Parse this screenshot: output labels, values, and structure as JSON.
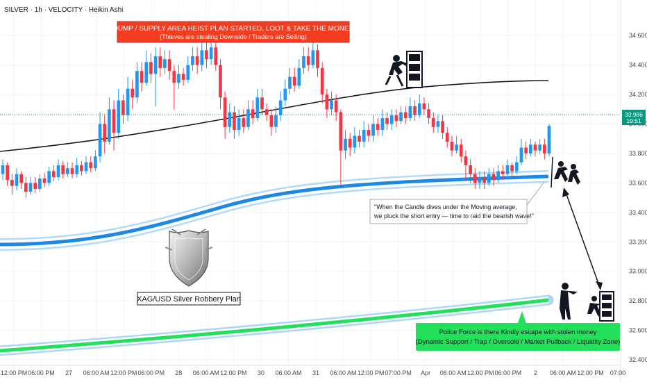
{
  "header": {
    "symbol_text": "SILVER · 1h · VELOCITY · Heikin Ashi"
  },
  "banner": {
    "line1": "DUMP / SUPPLY AREA HEIST PLAN STARTED, LOOT & TAKE THE MONEY",
    "line2": "(Thieves are stealing Downside / Traders are Selling)",
    "color": "#f23d20"
  },
  "note": {
    "line1": "\"When the Candle dives under the Moving average,",
    "line2": "we pluck the short entry — time to raid the bearish wave!\""
  },
  "logo_caption": "XAG/USD Silver Robbery Plan",
  "support_box": {
    "line1": "Police Force is there Kindly escape with stolen money",
    "line2": "(Dynamic Support / Trap / Oversold / Market Pullback / Liquidity Zone)",
    "color": "#22e05a"
  },
  "price_tag": {
    "price": "33.986",
    "countdown": "19:51",
    "color": "#089981"
  },
  "colors": {
    "up": "#2196f3",
    "down": "#f23645",
    "ma": "#131722",
    "band_blue": "#1e88e5",
    "band_light": "#90caf9",
    "band_green": "#22e05a"
  },
  "chart_data": {
    "type": "candlestick",
    "title": "SILVER · 1h · VELOCITY · Heikin Ashi",
    "ylim": [
      32.4,
      34.7
    ],
    "y_ticks": [
      "34.600",
      "34.400",
      "34.200",
      "34.000",
      "33.800",
      "33.600",
      "33.400",
      "33.200",
      "33.000",
      "32.800",
      "32.600",
      "32.400"
    ],
    "x_ticks": [
      "12:00 PM",
      "06:00 PM",
      "27",
      "06:00 AM",
      "12:00 PM",
      "06:00 PM",
      "28",
      "06:00 AM",
      "12:00 PM",
      "30",
      "06:00 AM",
      "31",
      "06:00 AM",
      "12:00 PM",
      "07:00 PM",
      "Apr",
      "06:00 AM",
      "12:00 PM",
      "06:00 PM",
      "2",
      "06:00 AM",
      "12:00 PM",
      "07:00"
    ],
    "last_price": 33.986,
    "candles": [
      {
        "o": 33.66,
        "c": 33.72,
        "h": 33.76,
        "l": 33.62
      },
      {
        "o": 33.72,
        "c": 33.62,
        "h": 33.74,
        "l": 33.58
      },
      {
        "o": 33.62,
        "c": 33.58,
        "h": 33.66,
        "l": 33.52
      },
      {
        "o": 33.58,
        "c": 33.66,
        "h": 33.7,
        "l": 33.55
      },
      {
        "o": 33.66,
        "c": 33.6,
        "h": 33.68,
        "l": 33.56
      },
      {
        "o": 33.6,
        "c": 33.54,
        "h": 33.64,
        "l": 33.5
      },
      {
        "o": 33.54,
        "c": 33.6,
        "h": 33.64,
        "l": 33.52
      },
      {
        "o": 33.6,
        "c": 33.56,
        "h": 33.64,
        "l": 33.53
      },
      {
        "o": 33.56,
        "c": 33.63,
        "h": 33.66,
        "l": 33.54
      },
      {
        "o": 33.63,
        "c": 33.6,
        "h": 33.67,
        "l": 33.57
      },
      {
        "o": 33.6,
        "c": 33.68,
        "h": 33.71,
        "l": 33.58
      },
      {
        "o": 33.68,
        "c": 33.64,
        "h": 33.72,
        "l": 33.61
      },
      {
        "o": 33.64,
        "c": 33.72,
        "h": 33.76,
        "l": 33.62
      },
      {
        "o": 33.72,
        "c": 33.66,
        "h": 33.75,
        "l": 33.63
      },
      {
        "o": 33.66,
        "c": 33.7,
        "h": 33.74,
        "l": 33.64
      },
      {
        "o": 33.7,
        "c": 33.66,
        "h": 33.74,
        "l": 33.63
      },
      {
        "o": 33.66,
        "c": 33.72,
        "h": 33.77,
        "l": 33.64
      },
      {
        "o": 33.72,
        "c": 33.68,
        "h": 33.75,
        "l": 33.65
      },
      {
        "o": 33.68,
        "c": 33.74,
        "h": 33.78,
        "l": 33.66
      },
      {
        "o": 33.74,
        "c": 33.7,
        "h": 33.78,
        "l": 33.67
      },
      {
        "o": 33.7,
        "c": 33.78,
        "h": 33.82,
        "l": 33.68
      },
      {
        "o": 33.78,
        "c": 34.0,
        "h": 34.08,
        "l": 33.74
      },
      {
        "o": 34.0,
        "c": 33.88,
        "h": 34.06,
        "l": 33.8
      },
      {
        "o": 33.88,
        "c": 34.1,
        "h": 34.18,
        "l": 33.86
      },
      {
        "o": 34.1,
        "c": 33.94,
        "h": 34.16,
        "l": 33.82
      },
      {
        "o": 33.94,
        "c": 34.16,
        "h": 34.24,
        "l": 33.9
      },
      {
        "o": 34.16,
        "c": 34.06,
        "h": 34.2,
        "l": 34.0
      },
      {
        "o": 34.06,
        "c": 34.24,
        "h": 34.32,
        "l": 34.02
      },
      {
        "o": 34.24,
        "c": 34.18,
        "h": 34.3,
        "l": 34.1
      },
      {
        "o": 34.18,
        "c": 34.36,
        "h": 34.42,
        "l": 34.14
      },
      {
        "o": 34.36,
        "c": 34.28,
        "h": 34.42,
        "l": 34.22
      },
      {
        "o": 34.28,
        "c": 34.42,
        "h": 34.5,
        "l": 34.26
      },
      {
        "o": 34.42,
        "c": 34.34,
        "h": 34.48,
        "l": 34.28
      },
      {
        "o": 34.34,
        "c": 34.46,
        "h": 34.52,
        "l": 34.12
      },
      {
        "o": 34.46,
        "c": 34.38,
        "h": 34.52,
        "l": 34.32
      },
      {
        "o": 34.38,
        "c": 34.44,
        "h": 34.5,
        "l": 34.34
      },
      {
        "o": 34.44,
        "c": 34.36,
        "h": 34.5,
        "l": 34.3
      },
      {
        "o": 34.36,
        "c": 34.28,
        "h": 34.4,
        "l": 34.1
      },
      {
        "o": 34.28,
        "c": 34.34,
        "h": 34.4,
        "l": 34.24
      },
      {
        "o": 34.34,
        "c": 34.3,
        "h": 34.38,
        "l": 34.26
      },
      {
        "o": 34.3,
        "c": 34.4,
        "h": 34.46,
        "l": 34.28
      },
      {
        "o": 34.4,
        "c": 34.46,
        "h": 34.52,
        "l": 34.36
      },
      {
        "o": 34.46,
        "c": 34.4,
        "h": 34.52,
        "l": 34.34
      },
      {
        "o": 34.4,
        "c": 34.5,
        "h": 34.56,
        "l": 34.36
      },
      {
        "o": 34.5,
        "c": 34.44,
        "h": 34.56,
        "l": 34.38
      },
      {
        "o": 34.44,
        "c": 34.52,
        "h": 34.58,
        "l": 34.4
      },
      {
        "o": 34.52,
        "c": 34.4,
        "h": 34.56,
        "l": 34.36
      },
      {
        "o": 34.4,
        "c": 34.18,
        "h": 34.44,
        "l": 34.1
      },
      {
        "o": 34.18,
        "c": 33.98,
        "h": 34.22,
        "l": 33.9
      },
      {
        "o": 33.98,
        "c": 34.08,
        "h": 34.14,
        "l": 33.94
      },
      {
        "o": 34.08,
        "c": 33.96,
        "h": 34.12,
        "l": 33.9
      },
      {
        "o": 33.96,
        "c": 34.04,
        "h": 34.1,
        "l": 33.92
      },
      {
        "o": 34.04,
        "c": 33.98,
        "h": 34.1,
        "l": 33.94
      },
      {
        "o": 33.98,
        "c": 34.1,
        "h": 34.16,
        "l": 33.96
      },
      {
        "o": 34.1,
        "c": 34.04,
        "h": 34.16,
        "l": 34.0
      },
      {
        "o": 34.04,
        "c": 34.18,
        "h": 34.24,
        "l": 34.02
      },
      {
        "o": 34.18,
        "c": 34.1,
        "h": 34.24,
        "l": 34.06
      },
      {
        "o": 34.1,
        "c": 34.06,
        "h": 34.14,
        "l": 34.02
      },
      {
        "o": 34.06,
        "c": 33.98,
        "h": 34.1,
        "l": 33.92
      },
      {
        "o": 33.98,
        "c": 34.06,
        "h": 34.12,
        "l": 33.94
      },
      {
        "o": 34.06,
        "c": 34.16,
        "h": 34.22,
        "l": 34.02
      },
      {
        "o": 34.16,
        "c": 34.24,
        "h": 34.3,
        "l": 34.12
      },
      {
        "o": 34.24,
        "c": 34.32,
        "h": 34.38,
        "l": 34.2
      },
      {
        "o": 34.32,
        "c": 34.26,
        "h": 34.38,
        "l": 34.22
      },
      {
        "o": 34.26,
        "c": 34.38,
        "h": 34.44,
        "l": 34.24
      },
      {
        "o": 34.38,
        "c": 34.46,
        "h": 34.52,
        "l": 34.34
      },
      {
        "o": 34.46,
        "c": 34.4,
        "h": 34.52,
        "l": 34.36
      },
      {
        "o": 34.4,
        "c": 34.5,
        "h": 34.56,
        "l": 34.38
      },
      {
        "o": 34.5,
        "c": 34.38,
        "h": 34.54,
        "l": 34.32
      },
      {
        "o": 34.38,
        "c": 34.2,
        "h": 34.42,
        "l": 34.14
      },
      {
        "o": 34.2,
        "c": 34.1,
        "h": 34.24,
        "l": 34.04
      },
      {
        "o": 34.1,
        "c": 34.16,
        "h": 34.22,
        "l": 34.06
      },
      {
        "o": 34.16,
        "c": 34.08,
        "h": 34.2,
        "l": 34.02
      },
      {
        "o": 34.08,
        "c": 33.82,
        "h": 34.1,
        "l": 33.58
      },
      {
        "o": 33.82,
        "c": 33.9,
        "h": 33.96,
        "l": 33.76
      },
      {
        "o": 33.9,
        "c": 33.84,
        "h": 33.94,
        "l": 33.78
      },
      {
        "o": 33.84,
        "c": 33.92,
        "h": 33.98,
        "l": 33.8
      },
      {
        "o": 33.92,
        "c": 33.88,
        "h": 33.96,
        "l": 33.84
      },
      {
        "o": 33.88,
        "c": 33.96,
        "h": 34.02,
        "l": 33.84
      },
      {
        "o": 33.96,
        "c": 33.92,
        "h": 34.0,
        "l": 33.88
      },
      {
        "o": 33.92,
        "c": 34.0,
        "h": 34.06,
        "l": 33.88
      },
      {
        "o": 34.0,
        "c": 33.96,
        "h": 34.04,
        "l": 33.92
      },
      {
        "o": 33.96,
        "c": 34.04,
        "h": 34.1,
        "l": 33.92
      },
      {
        "o": 34.04,
        "c": 34.0,
        "h": 34.08,
        "l": 33.96
      },
      {
        "o": 34.0,
        "c": 34.06,
        "h": 34.1,
        "l": 33.96
      },
      {
        "o": 34.06,
        "c": 34.02,
        "h": 34.1,
        "l": 33.98
      },
      {
        "o": 34.02,
        "c": 34.08,
        "h": 34.12,
        "l": 34.0
      },
      {
        "o": 34.08,
        "c": 34.04,
        "h": 34.12,
        "l": 34.0
      },
      {
        "o": 34.04,
        "c": 34.12,
        "h": 34.18,
        "l": 34.02
      },
      {
        "o": 34.12,
        "c": 34.06,
        "h": 34.16,
        "l": 34.02
      },
      {
        "o": 34.06,
        "c": 34.14,
        "h": 34.2,
        "l": 34.04
      },
      {
        "o": 34.14,
        "c": 34.1,
        "h": 34.18,
        "l": 34.06
      },
      {
        "o": 34.1,
        "c": 34.04,
        "h": 34.14,
        "l": 34.0
      },
      {
        "o": 34.04,
        "c": 33.98,
        "h": 34.08,
        "l": 33.94
      },
      {
        "o": 33.98,
        "c": 34.02,
        "h": 34.06,
        "l": 33.94
      },
      {
        "o": 34.02,
        "c": 33.94,
        "h": 34.06,
        "l": 33.9
      },
      {
        "o": 33.94,
        "c": 33.88,
        "h": 33.98,
        "l": 33.84
      },
      {
        "o": 33.88,
        "c": 33.82,
        "h": 33.92,
        "l": 33.78
      },
      {
        "o": 33.82,
        "c": 33.86,
        "h": 33.92,
        "l": 33.8
      },
      {
        "o": 33.86,
        "c": 33.78,
        "h": 33.9,
        "l": 33.74
      },
      {
        "o": 33.78,
        "c": 33.72,
        "h": 33.82,
        "l": 33.62
      },
      {
        "o": 33.72,
        "c": 33.66,
        "h": 33.76,
        "l": 33.6
      },
      {
        "o": 33.66,
        "c": 33.6,
        "h": 33.7,
        "l": 33.56
      },
      {
        "o": 33.6,
        "c": 33.64,
        "h": 33.68,
        "l": 33.56
      },
      {
        "o": 33.64,
        "c": 33.6,
        "h": 33.68,
        "l": 33.56
      },
      {
        "o": 33.6,
        "c": 33.66,
        "h": 33.7,
        "l": 33.58
      },
      {
        "o": 33.66,
        "c": 33.62,
        "h": 33.7,
        "l": 33.58
      },
      {
        "o": 33.62,
        "c": 33.68,
        "h": 33.72,
        "l": 33.6
      },
      {
        "o": 33.68,
        "c": 33.66,
        "h": 33.72,
        "l": 33.62
      },
      {
        "o": 33.66,
        "c": 33.72,
        "h": 33.76,
        "l": 33.64
      },
      {
        "o": 33.72,
        "c": 33.68,
        "h": 33.74,
        "l": 33.64
      },
      {
        "o": 33.68,
        "c": 33.74,
        "h": 33.78,
        "l": 33.66
      },
      {
        "o": 33.74,
        "c": 33.84,
        "h": 33.9,
        "l": 33.72
      },
      {
        "o": 33.84,
        "c": 33.8,
        "h": 33.88,
        "l": 33.76
      },
      {
        "o": 33.8,
        "c": 33.86,
        "h": 33.9,
        "l": 33.78
      },
      {
        "o": 33.86,
        "c": 33.82,
        "h": 33.88,
        "l": 33.78
      },
      {
        "o": 33.82,
        "c": 33.86,
        "h": 33.9,
        "l": 33.8
      },
      {
        "o": 33.86,
        "c": 33.8,
        "h": 33.9,
        "l": 33.76
      },
      {
        "o": 33.8,
        "c": 33.986,
        "h": 34.0,
        "l": 33.78
      }
    ]
  }
}
